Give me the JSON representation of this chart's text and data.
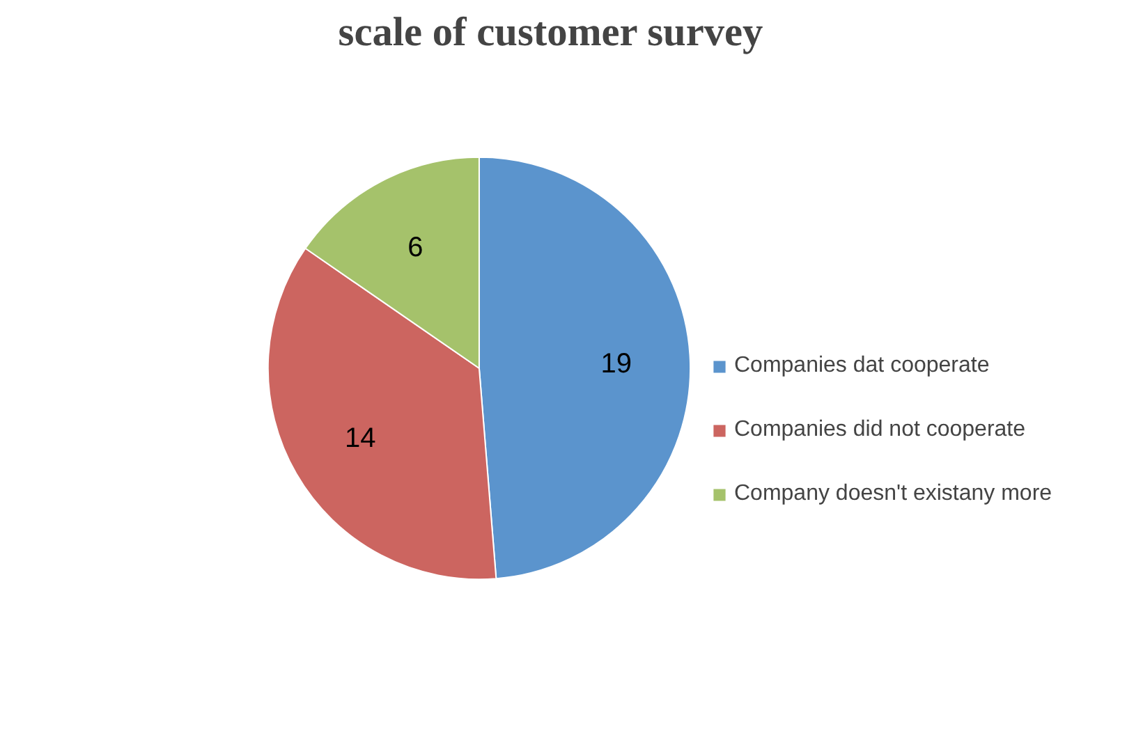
{
  "chart_data": {
    "type": "pie",
    "title": "scale of customer survey",
    "categories": [
      "Companies dat cooperate",
      "Companies did not cooperate",
      "Company doesn't existany more"
    ],
    "values": [
      19,
      14,
      6
    ],
    "colors": [
      "#5b94cd",
      "#cc6560",
      "#a5c26b"
    ],
    "data_labels": true,
    "legend": "right"
  }
}
